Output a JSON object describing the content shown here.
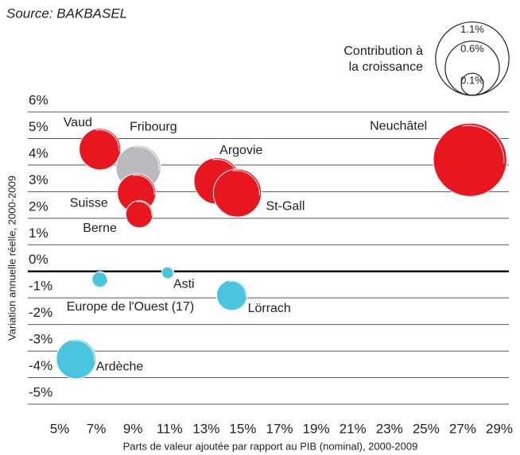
{
  "chart_data": {
    "type": "bubble",
    "subtitle": "Source: BAKBASEL",
    "y_label": "Variation annuelle réelle, 2000-2009",
    "x_label": "Parts de valeur ajoutée par rapport au PIB (nominal), 2000-2009",
    "xlim": [
      5,
      29
    ],
    "xticks": [
      {
        "value": 5,
        "label": "5%"
      },
      {
        "value": 7,
        "label": "7%"
      },
      {
        "value": 9,
        "label": "9%"
      },
      {
        "value": 11,
        "label": "11%"
      },
      {
        "value": 13,
        "label": "13%"
      },
      {
        "value": 15,
        "label": "15%"
      },
      {
        "value": 17,
        "label": "17%"
      },
      {
        "value": 19,
        "label": "19%"
      },
      {
        "value": 21,
        "label": "21%"
      },
      {
        "value": 23,
        "label": "23%"
      },
      {
        "value": 25,
        "label": "25%"
      },
      {
        "value": 27,
        "label": "27%"
      },
      {
        "value": 29,
        "label": "29%"
      }
    ],
    "ylim": [
      -5,
      6
    ],
    "yticks": [
      {
        "value": 6,
        "label": "6%"
      },
      {
        "value": 5,
        "label": "5%"
      },
      {
        "value": 4,
        "label": "4%"
      },
      {
        "value": 3,
        "label": "3%"
      },
      {
        "value": 2,
        "label": "2%"
      },
      {
        "value": 1,
        "label": "1%"
      },
      {
        "value": 0,
        "label": "0%"
      },
      {
        "value": -1,
        "label": "-1%"
      },
      {
        "value": -2,
        "label": "-2%"
      },
      {
        "value": -3,
        "label": "-3%"
      },
      {
        "value": -4,
        "label": "-4%"
      },
      {
        "value": -5,
        "label": "-5%"
      }
    ],
    "grid": true,
    "size_legend": {
      "title": [
        "Contribution à",
        "la croissance"
      ],
      "items": [
        {
          "value": 1.1,
          "label": "1.1%"
        },
        {
          "value": 0.6,
          "label": "0.6%"
        },
        {
          "value": 0.1,
          "label": "0.1%"
        }
      ]
    },
    "points": [
      {
        "name": "Vaud",
        "x": 7.2,
        "y": 4.6,
        "size": 0.35,
        "color": "#e8161f"
      },
      {
        "name": "Fribourg",
        "x": 9.3,
        "y": 3.9,
        "size": 0.41,
        "color": "#b9babd"
      },
      {
        "name": "Argovie",
        "x": 13.6,
        "y": 3.4,
        "size": 0.44,
        "color": "#e8161f"
      },
      {
        "name": "St-Gall",
        "x": 14.7,
        "y": 2.95,
        "size": 0.47,
        "color": "#e8161f"
      },
      {
        "name": "Suisse",
        "x": 9.2,
        "y": 2.95,
        "size": 0.3,
        "color": "#e8161f"
      },
      {
        "name": "Berne",
        "x": 9.35,
        "y": 2.15,
        "size": 0.15,
        "color": "#e8161f"
      },
      {
        "name": "Neuchâtel",
        "x": 27.4,
        "y": 4.2,
        "size": 1.1,
        "color": "#e8161f"
      },
      {
        "name": "Europe de l'Ouest (17)",
        "x": 7.2,
        "y": -0.3,
        "size": 0.05,
        "color": "#4ac5e0"
      },
      {
        "name": "Asti",
        "x": 10.9,
        "y": -0.05,
        "size": 0.03,
        "color": "#4ac5e0"
      },
      {
        "name": "Lörrach",
        "x": 14.4,
        "y": -0.9,
        "size": 0.19,
        "color": "#4ac5e0"
      },
      {
        "name": "Ardèche",
        "x": 5.9,
        "y": -3.3,
        "size": 0.32,
        "color": "#4ac5e0"
      }
    ]
  }
}
